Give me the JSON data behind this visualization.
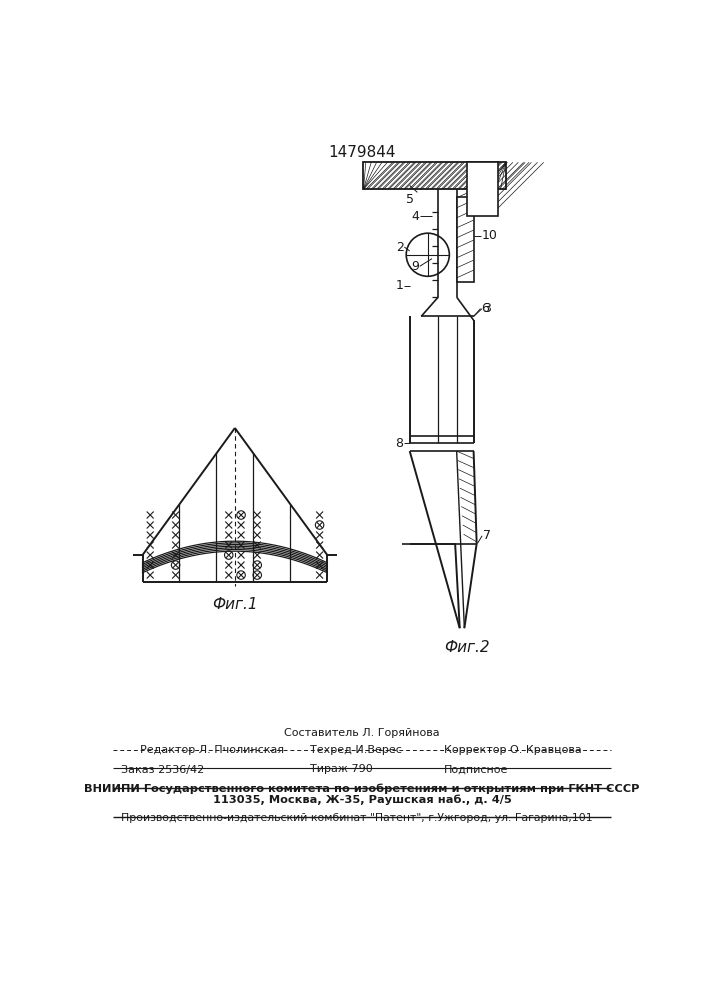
{
  "patent_number": "1479844",
  "fig1_caption": "Фиг.1",
  "fig2_caption": "Фиг.2",
  "footer_sostavitel": "Составитель Л. Горяйнова",
  "footer_line1_left": "Редактор Л. Пчолинская",
  "footer_line1_center": "Техред И.Верес",
  "footer_line1_right": "Корректор О. Кравцова",
  "footer_zakaz": "Заказ 2536/42",
  "footer_tirazh": "Тираж 790",
  "footer_podpisnoe": "Подписное",
  "footer_vniiipi": "ВНИИПИ Государственного комитета по изобретениям и открытиям при ГКНТ СССР",
  "footer_address": "113035, Москва, Ж-35, Раушская наб., д. 4/5",
  "footer_patent": "Производственно-издательский комбинат \"Патент\", г.Ужгород, ул. Гагарина,101",
  "bg_color": "#ffffff",
  "text_color": "#1a1a1a",
  "line_color": "#1a1a1a"
}
